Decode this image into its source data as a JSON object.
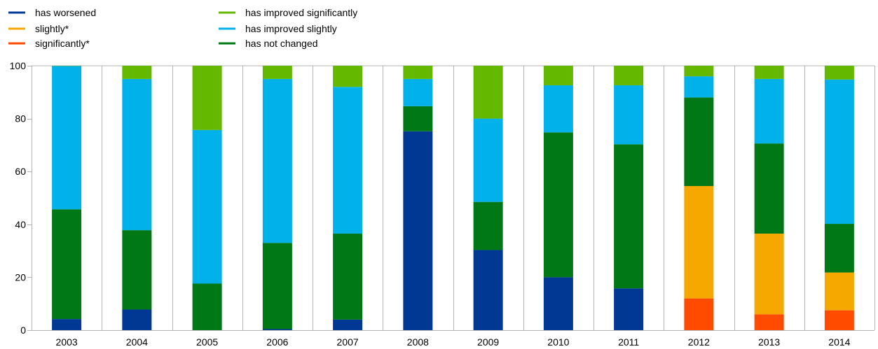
{
  "chart_data": {
    "type": "bar",
    "stacked": true,
    "title": "",
    "xlabel": "",
    "ylabel": "",
    "ylim": [
      0,
      100
    ],
    "yticks": [
      0,
      20,
      40,
      60,
      80,
      100
    ],
    "grid": "vertical",
    "legend_placement": "top-left",
    "categories": [
      "2003",
      "2004",
      "2005",
      "2006",
      "2007",
      "2008",
      "2009",
      "2010",
      "2011",
      "2012",
      "2013",
      "2014"
    ],
    "legend": [
      {
        "name": "has worsened",
        "color": "#003894"
      },
      {
        "name": "slightly*",
        "color": "#f5a800"
      },
      {
        "name": "significantly*",
        "color": "#ff4b00"
      },
      {
        "name": "has improved significantly",
        "color": "#65b800"
      },
      {
        "name": "has improved slightly",
        "color": "#00b1ea"
      },
      {
        "name": "has not changed",
        "color": "#007816"
      }
    ],
    "series": [
      {
        "key": "significantly",
        "color": "#ff4b00",
        "values": [
          0,
          0,
          0,
          0,
          0,
          0,
          0,
          0,
          0,
          12,
          6,
          7.5
        ]
      },
      {
        "key": "slightly",
        "color": "#f5a800",
        "values": [
          0,
          0,
          0,
          0,
          0,
          0,
          0,
          0,
          0,
          42.5,
          30.5,
          14.3
        ]
      },
      {
        "key": "has_worsened",
        "color": "#003894",
        "values": [
          4.2,
          7.8,
          0,
          0.4,
          4,
          75.2,
          30.3,
          20,
          15.8,
          0,
          0,
          0
        ]
      },
      {
        "key": "has_not_changed",
        "color": "#007816",
        "values": [
          41.5,
          30,
          17.6,
          32.6,
          32.5,
          9.5,
          18.2,
          54.8,
          54.5,
          33.5,
          34.1,
          18.4
        ]
      },
      {
        "key": "has_improved_slightly",
        "color": "#00b1ea",
        "values": [
          54.2,
          57.2,
          58.1,
          62,
          55.5,
          10.3,
          31.5,
          17.8,
          22.3,
          8,
          24.4,
          54.6
        ]
      },
      {
        "key": "has_improved_significantly",
        "color": "#65b800",
        "values": [
          0.1,
          5,
          24.3,
          5,
          8,
          5,
          20,
          7.4,
          7.4,
          4,
          5,
          5.2
        ]
      }
    ]
  }
}
